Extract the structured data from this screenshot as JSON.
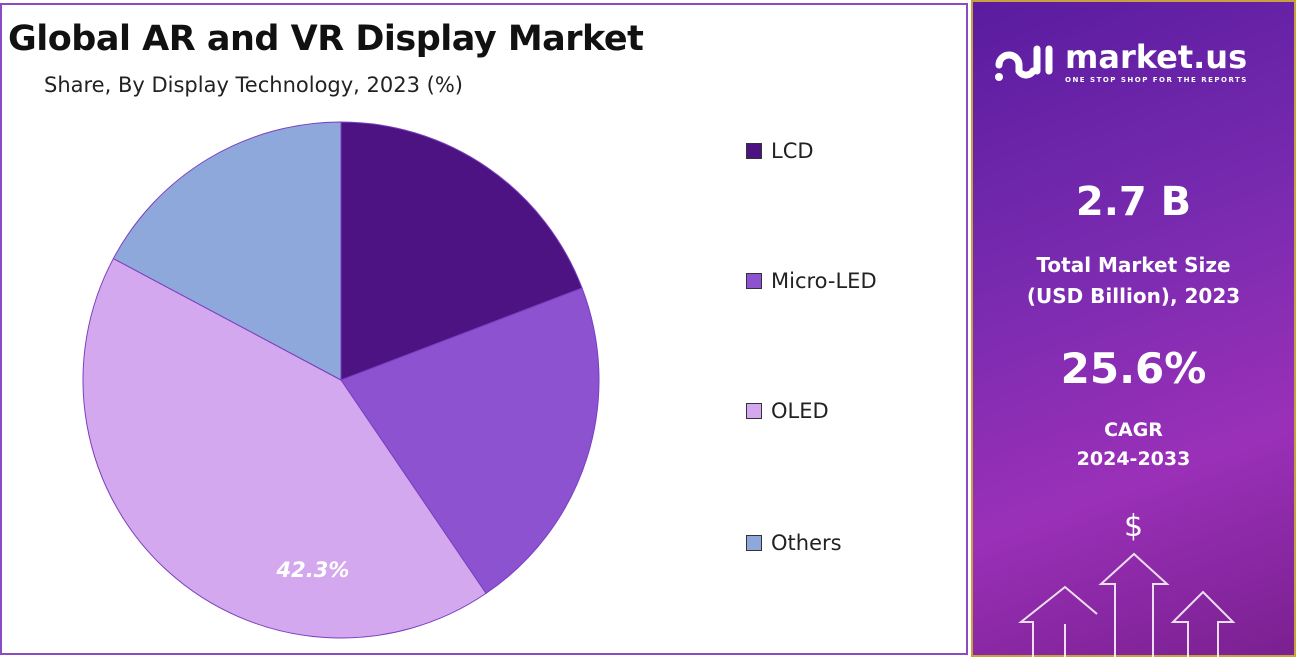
{
  "chart_data": {
    "type": "pie",
    "title": "Global AR and VR Display Market",
    "subtitle": "Share, By Display Technology, 2023 (%)",
    "categories": [
      "LCD",
      "Micro-LED",
      "OLED",
      "Others"
    ],
    "values": [
      19.2,
      21.3,
      42.3,
      17.2
    ],
    "colors": [
      "#4e1382",
      "#8c52d0",
      "#d4a8ee",
      "#8fa8dc"
    ],
    "data_labels": {
      "OLED": "42.3%"
    },
    "legend": "right"
  },
  "panel": {
    "brand": "market.us",
    "tagline": "ONE STOP SHOP FOR THE REPORTS",
    "market_size": "2.7 B",
    "market_size_label_1": "Total Market Size",
    "market_size_label_2": "(USD Billion), 2023",
    "cagr": "25.6%",
    "cagr_label": "CAGR",
    "cagr_period": "2024-2033",
    "dollar": "$"
  }
}
